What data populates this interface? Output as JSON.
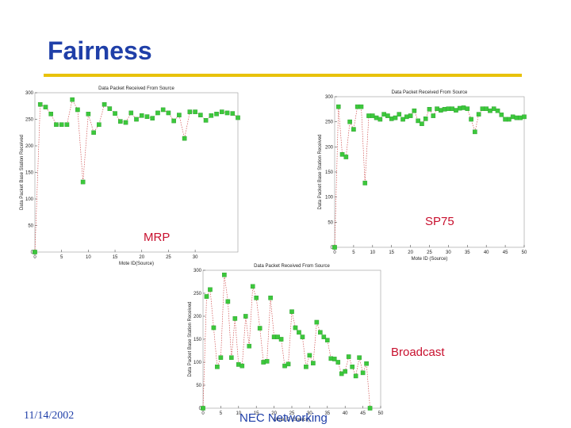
{
  "slide": {
    "title": "Fairness",
    "date": "11/14/2002",
    "organization": "NEC Networking",
    "colors": {
      "title": "#1f3fa8",
      "rule": "#e8c20a",
      "tag": "#c8102e",
      "point": "#3cc83c",
      "line": "#d05050"
    }
  },
  "chart_data": [
    {
      "type": "line",
      "title": "Data Packet Received From Source",
      "xlabel": "Mote ID(Source)",
      "ylabel": "Data Packet Base Station Received",
      "tag": "MRP",
      "xlim": [
        0,
        38
      ],
      "ylim": [
        0,
        300
      ],
      "xticks": [
        0,
        5,
        10,
        15,
        20,
        25,
        30
      ],
      "yticks": [
        0,
        50,
        100,
        150,
        200,
        250,
        300
      ],
      "x": [
        0,
        1,
        2,
        3,
        4,
        5,
        6,
        7,
        8,
        9,
        10,
        11,
        12,
        13,
        14,
        15,
        16,
        17,
        18,
        19,
        20,
        21,
        22,
        23,
        24,
        25,
        26,
        27,
        28,
        29,
        30,
        31,
        32,
        33,
        34,
        35,
        36,
        37,
        38
      ],
      "values": [
        0,
        278,
        273,
        260,
        240,
        240,
        240,
        287,
        268,
        132,
        260,
        225,
        240,
        278,
        270,
        261,
        246,
        244,
        262,
        250,
        257,
        255,
        252,
        262,
        268,
        262,
        247,
        258,
        214,
        264,
        264,
        258,
        248,
        257,
        260,
        264,
        262,
        261,
        253
      ]
    },
    {
      "type": "line",
      "title": "Data Packet Received From Source",
      "xlabel": "Mote ID (Source)",
      "ylabel": "Data Packet Base Station Received",
      "tag": "SP75",
      "xlim": [
        0,
        50
      ],
      "ylim": [
        0,
        300
      ],
      "xticks": [
        0,
        5,
        10,
        15,
        20,
        25,
        30,
        35,
        40,
        45,
        50
      ],
      "yticks": [
        0,
        50,
        100,
        150,
        200,
        250,
        300
      ],
      "x": [
        0,
        1,
        2,
        3,
        4,
        5,
        6,
        7,
        8,
        9,
        10,
        11,
        12,
        13,
        14,
        15,
        16,
        17,
        18,
        19,
        20,
        21,
        22,
        23,
        24,
        25,
        26,
        27,
        28,
        29,
        30,
        31,
        32,
        33,
        34,
        35,
        36,
        37,
        38,
        39,
        40,
        41,
        42,
        43,
        44,
        45,
        46,
        47,
        48,
        49,
        50
      ],
      "values": [
        0,
        280,
        185,
        180,
        250,
        235,
        280,
        280,
        128,
        262,
        262,
        258,
        255,
        265,
        262,
        256,
        258,
        265,
        255,
        260,
        262,
        272,
        252,
        246,
        256,
        275,
        262,
        276,
        273,
        275,
        276,
        276,
        273,
        277,
        278,
        276,
        255,
        230,
        265,
        276,
        276,
        272,
        276,
        272,
        264,
        255,
        255,
        260,
        258,
        258,
        260
      ]
    },
    {
      "type": "line",
      "title": "Data Packet Received From Source",
      "xlabel": "Mote ID (Source)",
      "ylabel": "Data Packet Base Station Received",
      "tag": "Broadcast",
      "xlim": [
        0,
        50
      ],
      "ylim": [
        0,
        300
      ],
      "xticks": [
        0,
        5,
        10,
        15,
        20,
        25,
        30,
        35,
        40,
        45,
        50
      ],
      "yticks": [
        0,
        50,
        100,
        150,
        200,
        250,
        300
      ],
      "x": [
        0,
        1,
        2,
        3,
        4,
        5,
        6,
        7,
        8,
        9,
        10,
        11,
        12,
        13,
        14,
        15,
        16,
        17,
        18,
        19,
        20,
        21,
        22,
        23,
        24,
        25,
        26,
        27,
        28,
        29,
        30,
        31,
        32,
        33,
        34,
        35,
        36,
        37,
        38,
        39,
        40,
        41,
        42,
        43,
        44,
        45,
        46,
        47
      ],
      "values": [
        0,
        243,
        258,
        175,
        90,
        110,
        290,
        232,
        110,
        195,
        95,
        92,
        200,
        135,
        265,
        240,
        174,
        100,
        102,
        240,
        155,
        155,
        150,
        92,
        96,
        210,
        175,
        165,
        155,
        90,
        115,
        98,
        187,
        165,
        155,
        148,
        108,
        107,
        100,
        75,
        80,
        112,
        90,
        70,
        110,
        77,
        97,
        0
      ]
    }
  ]
}
